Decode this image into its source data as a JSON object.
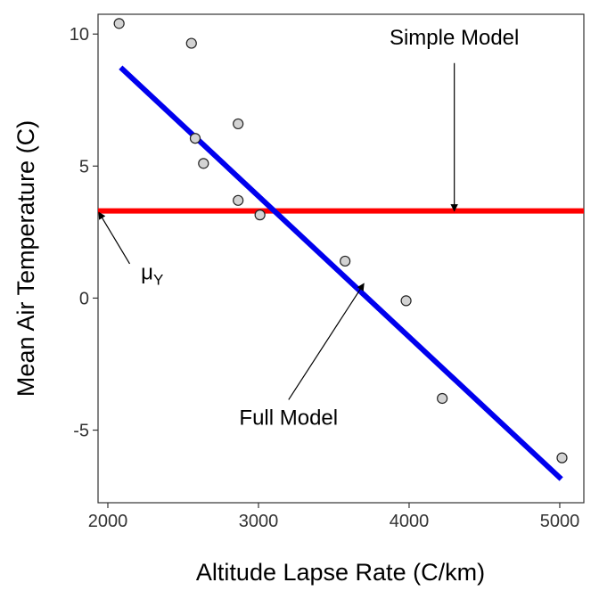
{
  "chart_data": {
    "type": "scatter",
    "xlabel": "Altitude Lapse Rate (C/km)",
    "ylabel": "Mean Air Temperature (C)",
    "xlim": [
      1935,
      5160
    ],
    "ylim": [
      -7.75,
      10.75
    ],
    "x_ticks": [
      2000,
      3000,
      4000,
      5000
    ],
    "y_ticks": [
      -5,
      0,
      5,
      10
    ],
    "x_tick_labels": [
      "2000",
      "3000",
      "4000",
      "5000"
    ],
    "y_tick_labels": [
      "-5",
      "0",
      "5",
      "10"
    ],
    "grid": false,
    "points": [
      {
        "x": 2075,
        "y": 10.4
      },
      {
        "x": 2555,
        "y": 9.65
      },
      {
        "x": 2580,
        "y": 6.05
      },
      {
        "x": 2635,
        "y": 5.1
      },
      {
        "x": 2865,
        "y": 6.6
      },
      {
        "x": 2865,
        "y": 3.7
      },
      {
        "x": 3010,
        "y": 3.15
      },
      {
        "x": 3575,
        "y": 1.4
      },
      {
        "x": 3980,
        "y": -0.1
      },
      {
        "x": 4220,
        "y": -3.8
      },
      {
        "x": 5015,
        "y": -6.05
      }
    ],
    "simple_model": {
      "y": 3.3,
      "color": "#ff0000"
    },
    "full_model": {
      "x_start": 2085,
      "x_end": 5010,
      "intercept": 19.85,
      "slope": -0.00533,
      "color": "#0000ee"
    },
    "annotations": [
      {
        "id": "simple",
        "text": "Simple Model",
        "label_x": 4300,
        "label_y": 9.6,
        "tail_x": 4300,
        "tail_y": 8.9,
        "head_x": 4300,
        "head_y": 3.3
      },
      {
        "id": "full",
        "text": "Full Model",
        "label_x": 3200,
        "label_y": -4.8,
        "tail_x": 3200,
        "tail_y": -3.85,
        "head_x": 3700,
        "head_y": 0.55
      },
      {
        "id": "mu",
        "text": "μ",
        "subscript": "Y",
        "label_x": 2220,
        "label_y": 0.7,
        "tail_x": 2145,
        "tail_y": 1.3,
        "head_x": 1940,
        "head_y": 3.25
      }
    ]
  }
}
